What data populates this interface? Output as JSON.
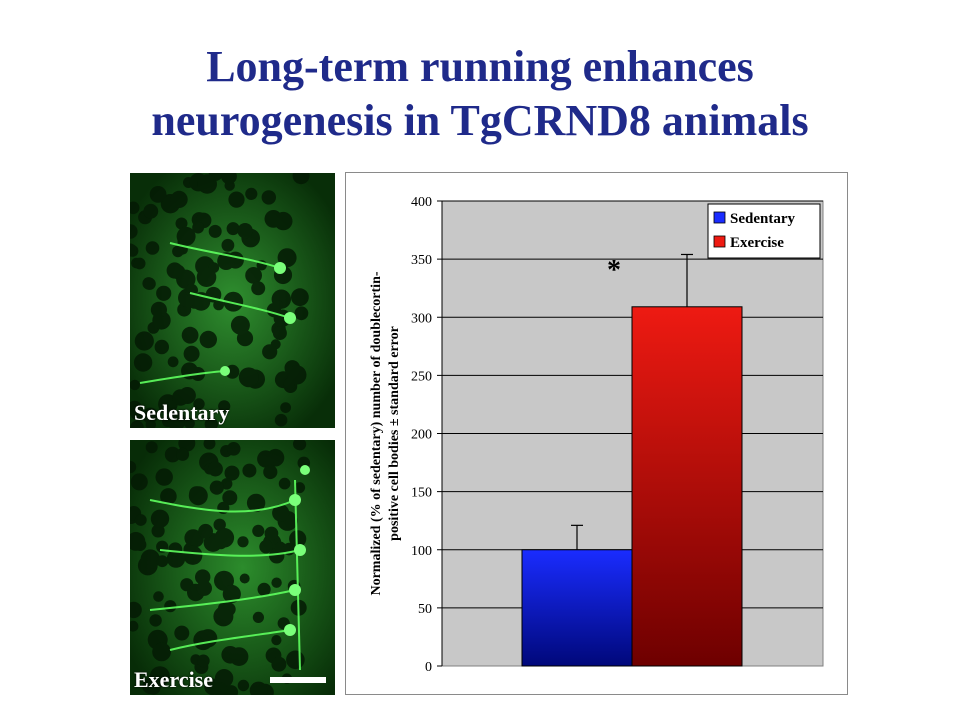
{
  "slide": {
    "title_line1": "Long-term running enhances",
    "title_line2": "neurogenesis in TgCRND8 animals"
  },
  "images": [
    {
      "label": "Sedentary"
    },
    {
      "label": "Exercise"
    }
  ],
  "colors": {
    "title": "#1f2a8a",
    "plot_background": "#c8c8c8",
    "sedentary_top": "#1a2cff",
    "sedentary_bottom": "#00087a",
    "exercise_top": "#ee1a12",
    "exercise_bottom": "#6e0000"
  },
  "chart_data": {
    "type": "bar",
    "categories": [
      "Sedentary",
      "Exercise"
    ],
    "values": [
      100,
      309
    ],
    "errors": [
      21,
      45
    ],
    "ylabel_line1": "Normalized (% of sedentary) number of doublecortin-",
    "ylabel_line2": "positive cell bodies ± standard error",
    "ylim": [
      0,
      400
    ],
    "yticks": [
      "0",
      "50",
      "100",
      "150",
      "200",
      "250",
      "300",
      "350",
      "400"
    ],
    "grid": true,
    "legend": {
      "position": "top-right",
      "entries": [
        "Sedentary",
        "Exercise"
      ]
    },
    "annotation": "*"
  }
}
